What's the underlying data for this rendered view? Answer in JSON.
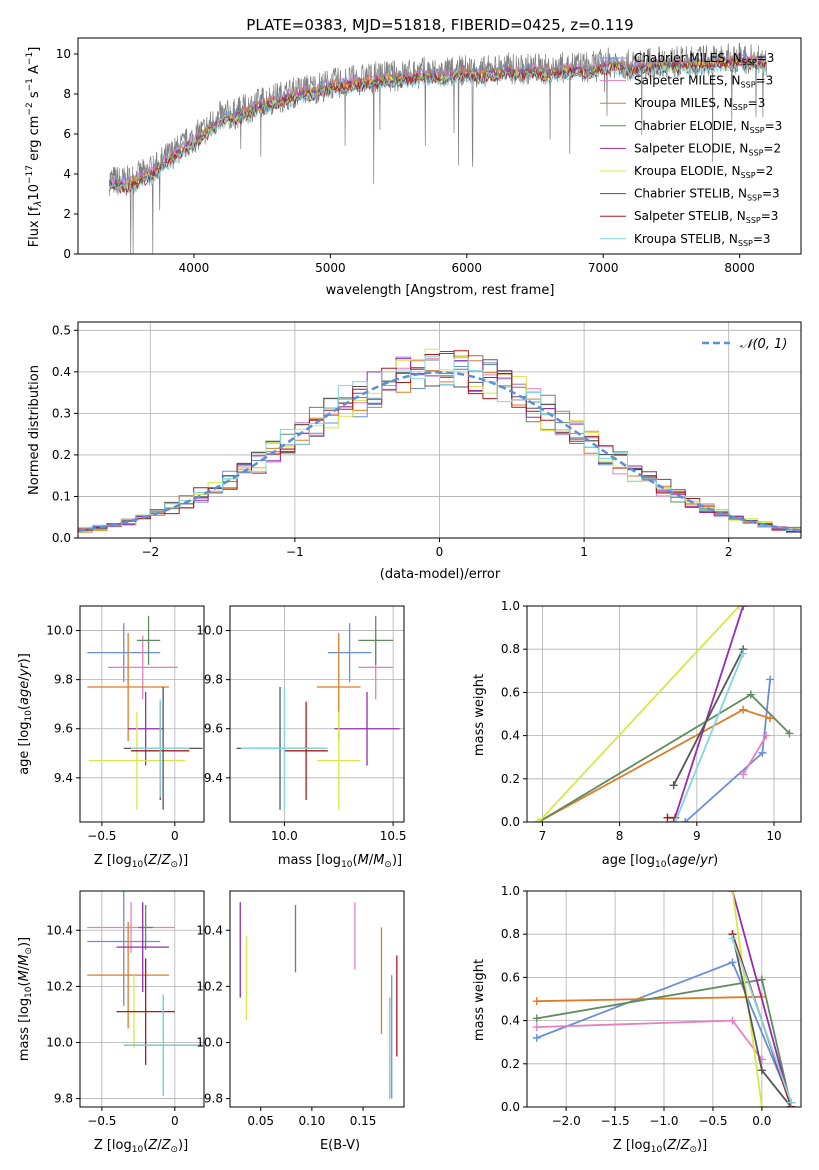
{
  "figure_title": "PLATE=0383, MJD=51818, FIBERID=0425, z=0.119",
  "colors": {
    "Chabrier MILES": "#6a8fd8",
    "Salpeter MILES": "#e57fc0",
    "Kroupa MILES": "#e07b24",
    "Chabrier ELODIE": "#5e8c5e",
    "Salpeter ELODIE": "#9a2ab0",
    "Kroupa ELODIE": "#d6e84a",
    "Chabrier STELIB": "#555555",
    "Salpeter STELIB": "#b01818",
    "Kroupa STELIB": "#7fd8e0",
    "data": "#808080",
    "normal": "#5b8fd6"
  },
  "chart_data": [
    {
      "id": "spectrum",
      "type": "line",
      "title": "PLATE=0383, MJD=51818, FIBERID=0425, z=0.119",
      "xlabel": "wavelength [Angstrom, rest frame]",
      "ylabel": "Flux [f",
      "xlim": [
        3150,
        8450
      ],
      "ylim": [
        0,
        10.8
      ],
      "xticks": [
        4000,
        5000,
        6000,
        7000,
        8000
      ],
      "yticks": [
        0,
        2,
        4,
        6,
        8,
        10
      ],
      "grid": false,
      "legend_position": "top-right",
      "x": [
        3380,
        3500,
        3600,
        3700,
        3800,
        3900,
        4000,
        4100,
        4200,
        4300,
        4400,
        4500,
        4600,
        4700,
        4800,
        4900,
        5000,
        5100,
        5200,
        5300,
        5400,
        5500,
        5600,
        5700,
        5800,
        5900,
        6000,
        6100,
        6200,
        6300,
        6400,
        6500,
        6600,
        6700,
        6800,
        6900,
        7000,
        7100,
        7200,
        7300,
        7400,
        7600,
        7800,
        8000,
        8200
      ],
      "data_flux": [
        3.7,
        3.6,
        3.9,
        4.2,
        4.8,
        5.3,
        5.8,
        6.3,
        6.9,
        7.0,
        7.3,
        7.6,
        7.8,
        8.0,
        8.2,
        8.3,
        8.5,
        8.6,
        8.7,
        8.8,
        8.9,
        8.9,
        9.0,
        9.1,
        9.0,
        9.1,
        9.2,
        9.1,
        9.2,
        9.3,
        9.2,
        9.3,
        9.2,
        9.3,
        9.4,
        9.3,
        9.5,
        9.6,
        9.4,
        9.5,
        9.6,
        9.6,
        9.7,
        9.8,
        9.7
      ],
      "series": [
        {
          "name": "Chabrier MILES, N",
          "nssp": "3"
        },
        {
          "name": "Salpeter MILES, N",
          "nssp": "3"
        },
        {
          "name": "Kroupa MILES, N",
          "nssp": "3"
        },
        {
          "name": "Chabrier ELODIE, N",
          "nssp": "3"
        },
        {
          "name": "Salpeter ELODIE, N",
          "nssp": "2"
        },
        {
          "name": "Kroupa ELODIE, N",
          "nssp": "2"
        },
        {
          "name": "Chabrier STELIB, N",
          "nssp": "3"
        },
        {
          "name": "Salpeter STELIB, N",
          "nssp": "3"
        },
        {
          "name": "Kroupa STELIB, N",
          "nssp": "3"
        }
      ]
    },
    {
      "id": "residuals",
      "type": "histogram",
      "xlabel": "(data-model)/error",
      "ylabel": "Normed distribution",
      "xlim": [
        -2.5,
        2.5
      ],
      "ylim": [
        0,
        0.52
      ],
      "xticks": [
        -2,
        -1,
        0,
        1,
        2
      ],
      "yticks": [
        0.0,
        0.1,
        0.2,
        0.3,
        0.4,
        0.5
      ],
      "grid": true,
      "legend": "𝒩(0, 1)",
      "legend_position": "top-right",
      "bin_width": 0.1
    },
    {
      "id": "age_vs_Z",
      "type": "errorbar",
      "xlabel": "Z [log",
      "ylabel": "age  [log",
      "xlim": [
        -0.65,
        0.2
      ],
      "ylim": [
        9.22,
        10.1
      ],
      "xticks": [
        -0.5,
        0.0
      ],
      "yticks": [
        9.4,
        9.6,
        9.8,
        10.0
      ],
      "grid": true,
      "points": [
        {
          "series": "Chabrier MILES",
          "x": -0.35,
          "xerr": 0.25,
          "y": 9.91,
          "yerr": 0.12
        },
        {
          "series": "Salpeter MILES",
          "x": -0.22,
          "xerr": 0.24,
          "y": 9.85,
          "yerr": 0.13
        },
        {
          "series": "Kroupa MILES",
          "x": -0.32,
          "xerr": 0.28,
          "y": 9.77,
          "yerr": 0.22
        },
        {
          "series": "Chabrier ELODIE",
          "x": -0.18,
          "xerr": 0.08,
          "y": 9.96,
          "yerr": 0.1
        },
        {
          "series": "Salpeter ELODIE",
          "x": -0.2,
          "xerr": 0.12,
          "y": 9.6,
          "yerr": 0.15
        },
        {
          "series": "Kroupa ELODIE",
          "x": -0.26,
          "xerr": 0.33,
          "y": 9.47,
          "yerr": 0.2
        },
        {
          "series": "Chabrier STELIB",
          "x": -0.08,
          "xerr": 0.27,
          "y": 9.52,
          "yerr": 0.25
        },
        {
          "series": "Salpeter STELIB",
          "x": -0.1,
          "xerr": 0.2,
          "y": 9.51,
          "yerr": 0.2
        },
        {
          "series": "Kroupa STELIB",
          "x": -0.1,
          "xerr": 0.2,
          "y": 9.52,
          "yerr": 0.2
        }
      ]
    },
    {
      "id": "age_vs_mass",
      "type": "errorbar",
      "xlabel": "mass [log",
      "ylabel": "",
      "xlim": [
        9.75,
        10.55
      ],
      "ylim": [
        9.22,
        10.1
      ],
      "xticks": [
        10.0,
        10.5
      ],
      "yticks": [
        9.4,
        9.6,
        9.8,
        10.0
      ],
      "grid": true,
      "points": [
        {
          "series": "Chabrier MILES",
          "x": 10.3,
          "xerr": 0.1,
          "y": 9.91,
          "yerr": 0.12
        },
        {
          "series": "Salpeter MILES",
          "x": 10.42,
          "xerr": 0.08,
          "y": 9.85,
          "yerr": 0.13
        },
        {
          "series": "Kroupa MILES",
          "x": 10.25,
          "xerr": 0.1,
          "y": 9.77,
          "yerr": 0.22
        },
        {
          "series": "Chabrier ELODIE",
          "x": 10.42,
          "xerr": 0.08,
          "y": 9.96,
          "yerr": 0.1
        },
        {
          "series": "Salpeter ELODIE",
          "x": 10.38,
          "xerr": 0.15,
          "y": 9.6,
          "yerr": 0.15
        },
        {
          "series": "Kroupa ELODIE",
          "x": 10.25,
          "xerr": 0.1,
          "y": 9.47,
          "yerr": 0.2
        },
        {
          "series": "Chabrier STELIB",
          "x": 9.98,
          "xerr": 0.2,
          "y": 9.52,
          "yerr": 0.25
        },
        {
          "series": "Salpeter STELIB",
          "x": 10.1,
          "xerr": 0.1,
          "y": 9.51,
          "yerr": 0.2
        },
        {
          "series": "Kroupa STELIB",
          "x": 10.0,
          "xerr": 0.2,
          "y": 9.52,
          "yerr": 0.25
        }
      ]
    },
    {
      "id": "weight_vs_age",
      "type": "line",
      "xlabel": "age  [log",
      "ylabel": "mass weight",
      "xlim": [
        6.8,
        10.35
      ],
      "ylim": [
        0,
        1.0
      ],
      "xticks": [
        7,
        8,
        9,
        10
      ],
      "yticks": [
        0.0,
        0.2,
        0.4,
        0.6,
        0.8,
        1.0
      ],
      "grid": true,
      "series": [
        {
          "name": "Chabrier MILES",
          "x": [
            8.85,
            9.85,
            9.95
          ],
          "y": [
            0.0,
            0.32,
            0.66
          ]
        },
        {
          "name": "Salpeter MILES",
          "x": [
            9.6,
            9.9
          ],
          "y": [
            0.22,
            0.4
          ]
        },
        {
          "name": "Kroupa MILES",
          "x": [
            6.95,
            9.6,
            9.95
          ],
          "y": [
            0.0,
            0.52,
            0.48
          ]
        },
        {
          "name": "Chabrier ELODIE",
          "x": [
            6.95,
            9.7,
            10.2
          ],
          "y": [
            0.0,
            0.59,
            0.41
          ]
        },
        {
          "name": "Salpeter ELODIE",
          "x": [
            8.7,
            9.6
          ],
          "y": [
            0.0,
            1.0
          ]
        },
        {
          "name": "Kroupa ELODIE",
          "x": [
            6.95,
            9.55
          ],
          "y": [
            0.0,
            1.0
          ]
        },
        {
          "name": "Chabrier STELIB",
          "x": [
            8.7,
            9.6
          ],
          "y": [
            0.17,
            0.8
          ]
        },
        {
          "name": "Salpeter STELIB",
          "x": [
            8.62,
            8.72
          ],
          "y": [
            0.02,
            0.02
          ]
        },
        {
          "name": "Kroupa STELIB",
          "x": [
            8.72,
            9.6
          ],
          "y": [
            0.0,
            0.78
          ]
        }
      ]
    },
    {
      "id": "mass_vs_Z",
      "type": "errorbar",
      "xlabel": "Z [log",
      "ylabel": "mass [log",
      "xlim": [
        -0.65,
        0.2
      ],
      "ylim": [
        9.77,
        10.54
      ],
      "xticks": [
        -0.5,
        0.0
      ],
      "yticks": [
        9.8,
        10.0,
        10.2,
        10.4
      ],
      "grid": true,
      "points": [
        {
          "series": "Chabrier MILES",
          "x": -0.35,
          "xerr": 0.25,
          "y": 10.36,
          "yerr": 0.23
        },
        {
          "series": "Salpeter MILES",
          "x": -0.3,
          "xerr": 0.3,
          "y": 10.41,
          "yerr": 0.09
        },
        {
          "series": "Kroupa MILES",
          "x": -0.32,
          "xerr": 0.28,
          "y": 10.24,
          "yerr": 0.19
        },
        {
          "series": "Chabrier ELODIE",
          "x": -0.2,
          "xerr": 0.05,
          "y": 10.41,
          "yerr": 0.08
        },
        {
          "series": "Salpeter ELODIE",
          "x": -0.22,
          "xerr": 0.18,
          "y": 10.34,
          "yerr": 0.16
        },
        {
          "series": "Kroupa ELODIE",
          "x": -0.28,
          "xerr": 0.05,
          "y": 10.11,
          "yerr": 0.13
        },
        {
          "series": "Chabrier STELIB",
          "x": -0.08,
          "xerr": 0.27,
          "y": 9.99,
          "yerr": 0.18
        },
        {
          "series": "Salpeter STELIB",
          "x": -0.2,
          "xerr": 0.2,
          "y": 10.11,
          "yerr": 0.19
        },
        {
          "series": "Kroupa STELIB",
          "x": -0.08,
          "xerr": 0.27,
          "y": 9.99,
          "yerr": 0.18
        }
      ]
    },
    {
      "id": "mass_vs_ebv",
      "type": "errorbar",
      "xlabel": "E(B-V)",
      "ylabel": "",
      "xlim": [
        0.02,
        0.19
      ],
      "ylim": [
        9.77,
        10.54
      ],
      "xticks": [
        0.05,
        0.1,
        0.15
      ],
      "xticklabels": [
        "0.05",
        "0.10",
        "0.15"
      ],
      "yticks": [
        9.8,
        10.0,
        10.2,
        10.4
      ],
      "grid": false,
      "points": [
        {
          "series": "Chabrier MILES",
          "x": 0.178,
          "xerr": 0,
          "y": 10.02,
          "yerr": 0.22
        },
        {
          "series": "Salpeter MILES",
          "x": 0.142,
          "xerr": 0,
          "y": 10.38,
          "yerr": 0.12
        },
        {
          "series": "Kroupa MILES",
          "x": 0.168,
          "xerr": 0,
          "y": 10.22,
          "yerr": 0.19
        },
        {
          "series": "Chabrier ELODIE",
          "x": 0.084,
          "xerr": 0,
          "y": 10.37,
          "yerr": 0.12
        },
        {
          "series": "Salpeter ELODIE",
          "x": 0.03,
          "xerr": 0,
          "y": 10.33,
          "yerr": 0.17
        },
        {
          "series": "Kroupa ELODIE",
          "x": 0.036,
          "xerr": 0,
          "y": 10.23,
          "yerr": 0.15
        },
        {
          "series": "Chabrier STELIB",
          "x": 0.176,
          "xerr": 0,
          "y": 9.98,
          "yerr": 0.18
        },
        {
          "series": "Salpeter STELIB",
          "x": 0.183,
          "xerr": 0,
          "y": 10.13,
          "yerr": 0.18
        },
        {
          "series": "Kroupa STELIB",
          "x": 0.176,
          "xerr": 0,
          "y": 9.98,
          "yerr": 0.18
        }
      ]
    },
    {
      "id": "weight_vs_Z",
      "type": "line",
      "xlabel": "Z [log",
      "ylabel": "mass weight",
      "xlim": [
        -2.4,
        0.4
      ],
      "ylim": [
        0,
        1.0
      ],
      "xticks": [
        -2.0,
        -1.5,
        -1.0,
        -0.5,
        0.0
      ],
      "yticks": [
        0.0,
        0.2,
        0.4,
        0.6,
        0.8,
        1.0
      ],
      "grid": true,
      "series": [
        {
          "name": "Chabrier MILES",
          "x": [
            -2.3,
            -0.3,
            0.3
          ],
          "y": [
            0.32,
            0.67,
            0.02
          ]
        },
        {
          "name": "Salpeter MILES",
          "x": [
            -2.3,
            -0.3,
            0.0
          ],
          "y": [
            0.37,
            0.4,
            0.22
          ]
        },
        {
          "name": "Kroupa MILES",
          "x": [
            -2.3,
            0.0
          ],
          "y": [
            0.49,
            0.51
          ]
        },
        {
          "name": "Chabrier ELODIE",
          "x": [
            -2.3,
            0.0,
            0.3
          ],
          "y": [
            0.41,
            0.59,
            0.0
          ]
        },
        {
          "name": "Salpeter ELODIE",
          "x": [
            -0.3,
            0.3
          ],
          "y": [
            1.0,
            0.0
          ]
        },
        {
          "name": "Kroupa ELODIE",
          "x": [
            -0.3,
            0.0
          ],
          "y": [
            1.0,
            0.0
          ]
        },
        {
          "name": "Chabrier STELIB",
          "x": [
            -0.3,
            0.0,
            0.3
          ],
          "y": [
            0.8,
            0.17,
            0.0
          ]
        },
        {
          "name": "Salpeter STELIB",
          "x": [
            -0.3,
            0.3
          ],
          "y": [
            0.8,
            0.0
          ]
        },
        {
          "name": "Kroupa STELIB",
          "x": [
            -0.3,
            0.3
          ],
          "y": [
            0.78,
            0.02
          ]
        }
      ]
    }
  ]
}
